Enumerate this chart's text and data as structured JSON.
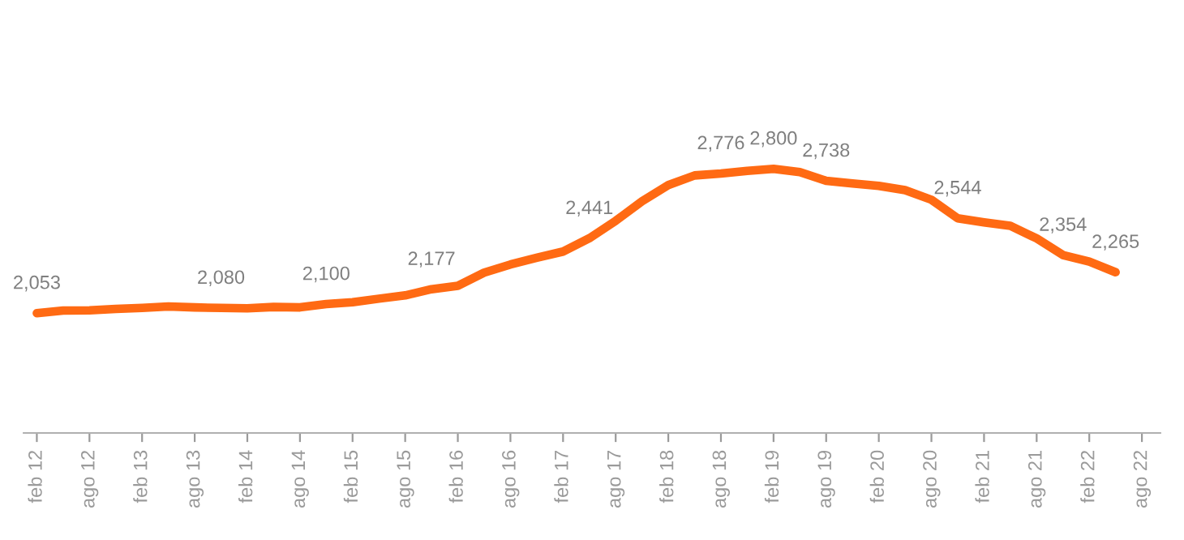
{
  "chart_data": {
    "type": "line",
    "categories": [
      "feb 12",
      null,
      "ago 12",
      null,
      "feb 13",
      null,
      "ago 13",
      null,
      "feb 14",
      null,
      "ago 14",
      null,
      "feb 15",
      null,
      "ago 15",
      null,
      "feb 16",
      null,
      "ago 16",
      null,
      "feb 17",
      null,
      "ago 17",
      null,
      "feb 18",
      null,
      "ago 18",
      null,
      "feb 19",
      null,
      "ago 19",
      null,
      "feb 20",
      null,
      "ago 20",
      null,
      "feb 21",
      null,
      "ago 21",
      null,
      "feb 22",
      null,
      "ago 22"
    ],
    "series": [
      {
        "color": "#ff6a13",
        "values": [
          2053,
          2067,
          2068,
          2075,
          2080,
          2088,
          2083,
          2080,
          2078,
          2085,
          2083,
          2100,
          2110,
          2128,
          2145,
          2177,
          2195,
          2263,
          2305,
          2340,
          2372,
          2441,
          2531,
          2632,
          2716,
          2766,
          2776,
          2790,
          2800,
          2783,
          2738,
          2725,
          2712,
          2690,
          2640,
          2544,
          2523,
          2505,
          2440,
          2354,
          2320,
          2265,
          null
        ],
        "value_labels": [
          "2,053",
          null,
          null,
          null,
          null,
          null,
          null,
          "2,080",
          null,
          null,
          null,
          "2,100",
          null,
          null,
          null,
          "2,177",
          null,
          null,
          null,
          null,
          null,
          "2,441",
          null,
          null,
          null,
          null,
          "2,776",
          null,
          "2,800",
          null,
          "2,738",
          null,
          null,
          null,
          null,
          "2,544",
          null,
          null,
          null,
          "2,354",
          null,
          "2,265",
          null
        ]
      }
    ],
    "tick_labels": "x",
    "grid": false,
    "legend": false,
    "marker": "none",
    "line_style": "solid"
  }
}
